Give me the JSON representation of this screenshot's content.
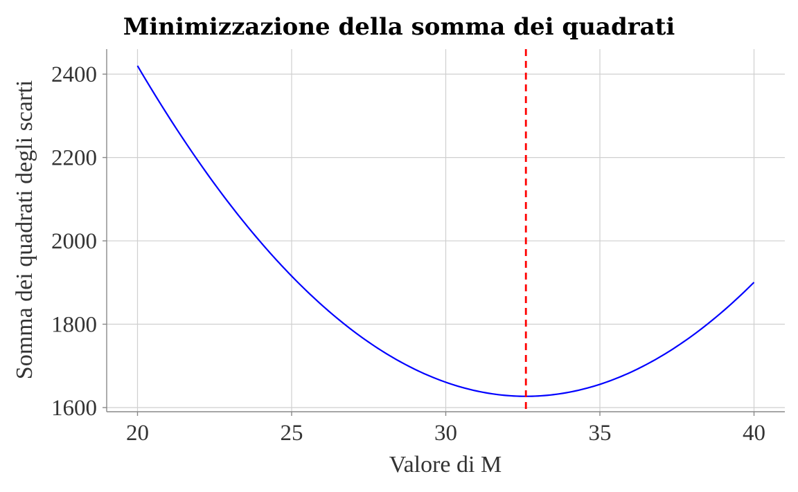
{
  "chart_data": {
    "type": "line",
    "title": "Minimizzazione della somma dei quadrati",
    "xlabel": "Valore di M",
    "ylabel": "Somma dei quadrati degli scarti",
    "xlim": [
      19,
      41
    ],
    "ylim": [
      1590,
      2460
    ],
    "x_ticks": [
      20,
      25,
      30,
      35,
      40
    ],
    "y_ticks": [
      1600,
      1800,
      2000,
      2200,
      2400
    ],
    "grid": true,
    "series": [
      {
        "color": "#0000ff",
        "curve": {
          "form": "quadratic",
          "vertex_x": 32.6,
          "vertex_y": 1627,
          "x_start": 20,
          "x_end": 40
        },
        "points": [
          {
            "x": 20,
            "y": 2420
          },
          {
            "x": 25,
            "y": 1913
          },
          {
            "x": 30,
            "y": 1660
          },
          {
            "x": 32.6,
            "y": 1627
          },
          {
            "x": 35,
            "y": 1658
          },
          {
            "x": 40,
            "y": 1900
          }
        ]
      }
    ],
    "reference_lines": [
      {
        "orientation": "vertical",
        "x": 32.6,
        "color": "#ff0000",
        "style": "dashed"
      }
    ]
  }
}
